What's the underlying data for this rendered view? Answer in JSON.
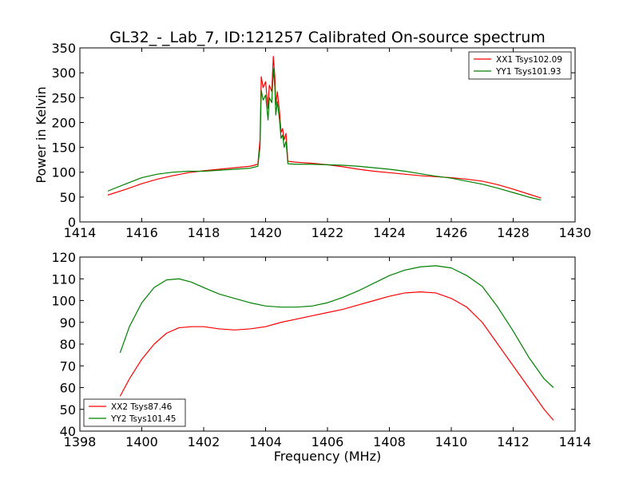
{
  "figure": {
    "title": "GL32_-_Lab_7, ID:121257 Calibrated On-source spectrum",
    "ylabel": "Power in Kelvin",
    "xlabel": "Frequency (MHz)"
  },
  "colors": {
    "red": "#ff0000",
    "green": "#008000",
    "axes": "#000000"
  },
  "chart_data": [
    {
      "type": "line",
      "title": "GL32_-_Lab_7, ID:121257 Calibrated On-source spectrum",
      "xlabel": "",
      "ylabel": "Power in Kelvin",
      "xlim": [
        1414,
        1430
      ],
      "ylim": [
        0,
        350
      ],
      "xticks": [
        "1414",
        "1416",
        "1418",
        "1420",
        "1422",
        "1424",
        "1426",
        "1428",
        "1430"
      ],
      "yticks": [
        "0",
        "50",
        "100",
        "150",
        "200",
        "250",
        "300",
        "350"
      ],
      "legend_position": "top-right",
      "grid": false,
      "series": [
        {
          "name": "XX1 Tsys102.09",
          "color": "#ff0000",
          "x": [
            1414.9,
            1415.5,
            1416.0,
            1416.5,
            1417.0,
            1417.5,
            1418.0,
            1418.5,
            1419.0,
            1419.5,
            1419.75,
            1419.82,
            1419.86,
            1419.92,
            1420.0,
            1420.08,
            1420.12,
            1420.2,
            1420.25,
            1420.3,
            1420.33,
            1420.38,
            1420.45,
            1420.5,
            1420.55,
            1420.6,
            1420.66,
            1420.72,
            1421.0,
            1421.5,
            1422.0,
            1422.5,
            1423.0,
            1423.5,
            1424.0,
            1424.5,
            1425.0,
            1425.5,
            1426.0,
            1426.5,
            1427.0,
            1427.5,
            1428.0,
            1428.5,
            1428.9
          ],
          "y": [
            54,
            66,
            77,
            86,
            93,
            99,
            103,
            106,
            109,
            112,
            116,
            165,
            292,
            270,
            282,
            228,
            275,
            262,
            333,
            292,
            235,
            262,
            222,
            180,
            188,
            165,
            178,
            122,
            120,
            118,
            115,
            111,
            106,
            102,
            99,
            96,
            93,
            91,
            89,
            86,
            82,
            75,
            66,
            56,
            48
          ]
        },
        {
          "name": "YY1 Tsys101.93",
          "color": "#008000",
          "x": [
            1414.9,
            1415.5,
            1416.0,
            1416.5,
            1417.0,
            1417.5,
            1418.0,
            1418.5,
            1419.0,
            1419.5,
            1419.75,
            1419.82,
            1419.86,
            1419.92,
            1420.0,
            1420.08,
            1420.12,
            1420.2,
            1420.25,
            1420.3,
            1420.33,
            1420.38,
            1420.45,
            1420.5,
            1420.55,
            1420.6,
            1420.66,
            1420.72,
            1421.0,
            1421.5,
            1422.0,
            1422.5,
            1423.0,
            1423.5,
            1424.0,
            1424.5,
            1425.0,
            1425.5,
            1426.0,
            1426.5,
            1427.0,
            1427.5,
            1428.0,
            1428.5,
            1428.9
          ],
          "y": [
            62,
            77,
            89,
            96,
            100,
            102,
            102,
            104,
            106,
            108,
            112,
            150,
            265,
            245,
            255,
            205,
            250,
            240,
            308,
            270,
            215,
            242,
            205,
            168,
            175,
            150,
            162,
            117,
            116,
            116,
            115,
            114,
            112,
            109,
            106,
            102,
            97,
            92,
            88,
            82,
            76,
            68,
            59,
            50,
            44
          ]
        }
      ]
    },
    {
      "type": "line",
      "title": "",
      "xlabel": "Frequency (MHz)",
      "ylabel": "",
      "xlim": [
        1398,
        1414
      ],
      "ylim": [
        40,
        120
      ],
      "xticks": [
        "1398",
        "1400",
        "1402",
        "1404",
        "1406",
        "1408",
        "1410",
        "1412",
        "1414"
      ],
      "yticks": [
        "40",
        "50",
        "60",
        "70",
        "80",
        "90",
        "100",
        "110",
        "120"
      ],
      "legend_position": "bottom-left",
      "grid": false,
      "series": [
        {
          "name": "XX2 Tsys87.46",
          "color": "#ff0000",
          "x": [
            1399.3,
            1399.6,
            1400.0,
            1400.4,
            1400.8,
            1401.2,
            1401.6,
            1402.0,
            1402.5,
            1403.0,
            1403.5,
            1404.0,
            1404.5,
            1405.0,
            1405.5,
            1406.0,
            1406.5,
            1407.0,
            1407.5,
            1408.0,
            1408.5,
            1409.0,
            1409.5,
            1410.0,
            1410.5,
            1411.0,
            1411.5,
            1412.0,
            1412.5,
            1413.0,
            1413.3
          ],
          "y": [
            56,
            64,
            73,
            80,
            85,
            87.5,
            88,
            88,
            87,
            86.5,
            87,
            88,
            90,
            91.5,
            93,
            94.5,
            96,
            98,
            100,
            102,
            103.5,
            104,
            103.5,
            101,
            97,
            90,
            80,
            70,
            60,
            50,
            45
          ]
        },
        {
          "name": "YY2 Tsys101.45",
          "color": "#008000",
          "x": [
            1399.3,
            1399.6,
            1400.0,
            1400.4,
            1400.8,
            1401.2,
            1401.6,
            1402.0,
            1402.5,
            1403.0,
            1403.5,
            1404.0,
            1404.5,
            1405.0,
            1405.5,
            1406.0,
            1406.5,
            1407.0,
            1407.5,
            1408.0,
            1408.5,
            1409.0,
            1409.5,
            1410.0,
            1410.5,
            1411.0,
            1411.5,
            1412.0,
            1412.5,
            1413.0,
            1413.3
          ],
          "y": [
            76,
            88,
            99,
            106,
            109.5,
            110,
            108.5,
            106,
            103,
            101,
            99,
            97.5,
            97,
            97,
            97.5,
            99,
            101.5,
            104.5,
            108,
            111.5,
            114,
            115.5,
            116,
            115,
            111.5,
            106.5,
            97,
            86,
            74,
            64,
            60
          ]
        }
      ]
    }
  ]
}
